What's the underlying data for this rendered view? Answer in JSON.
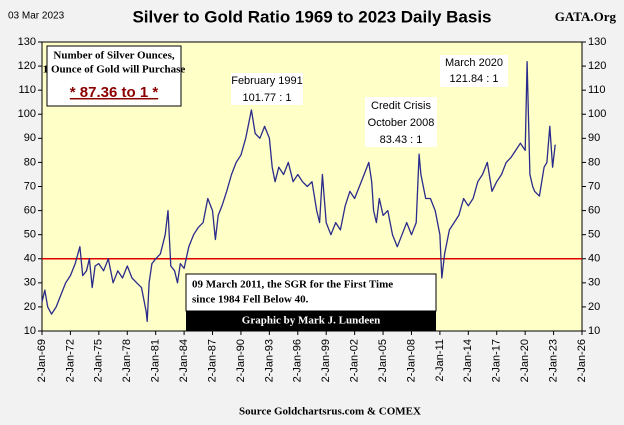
{
  "chart_data": {
    "type": "line",
    "date": "03 Mar 2023",
    "title": "Silver to Gold Ratio 1969 to 2023 Daily Basis",
    "site": "GATA.Org",
    "source": "Source Goldchartsrus.com & COMEX",
    "credit": "Graphic by Mark J. Lundeen",
    "box": {
      "lines": [
        "Number of Silver Ounces,",
        "1 Ounce of Gold will Purchase"
      ],
      "highlight": "* 87.36 to 1 *"
    },
    "annotations": [
      {
        "lines": [
          "February 1991",
          "101.77  : 1"
        ]
      },
      {
        "lines": [
          "Credit Crisis",
          "October 2008",
          "83.43  : 1"
        ]
      },
      {
        "lines": [
          "March  2020",
          "121.84  : 1"
        ]
      },
      {
        "lines": [
          "09 March 2011, the SGR for the First Time",
          "since 1984 Fell Below 40."
        ]
      }
    ],
    "color": "#2b2b8c",
    "hline": {
      "value": 40,
      "color": "#e00000"
    },
    "x": [
      1969.0,
      1969.3,
      1969.6,
      1970.0,
      1970.5,
      1971.0,
      1971.5,
      1972.0,
      1972.5,
      1973.0,
      1973.3,
      1973.7,
      1974.0,
      1974.3,
      1974.6,
      1975.0,
      1975.5,
      1976.0,
      1976.5,
      1977.0,
      1977.5,
      1978.0,
      1978.5,
      1979.0,
      1979.5,
      1980.0,
      1980.1,
      1980.3,
      1980.6,
      1981.0,
      1981.5,
      1982.0,
      1982.3,
      1982.6,
      1983.0,
      1983.3,
      1983.6,
      1984.0,
      1984.5,
      1985.0,
      1985.5,
      1986.0,
      1986.5,
      1987.0,
      1987.3,
      1987.6,
      1988.0,
      1988.5,
      1989.0,
      1989.5,
      1990.0,
      1990.5,
      1991.1,
      1991.5,
      1992.0,
      1992.5,
      1993.0,
      1993.3,
      1993.6,
      1994.0,
      1994.5,
      1995.0,
      1995.5,
      1996.0,
      1996.5,
      1997.0,
      1997.5,
      1998.0,
      1998.3,
      1998.6,
      1999.0,
      1999.5,
      2000.0,
      2000.5,
      2001.0,
      2001.5,
      2002.0,
      2002.5,
      2003.0,
      2003.5,
      2003.8,
      2004.0,
      2004.3,
      2004.6,
      2005.0,
      2005.5,
      2006.0,
      2006.5,
      2007.0,
      2007.5,
      2008.0,
      2008.5,
      2008.8,
      2009.0,
      2009.5,
      2010.0,
      2010.5,
      2011.0,
      2011.2,
      2011.5,
      2012.0,
      2012.5,
      2013.0,
      2013.5,
      2014.0,
      2014.5,
      2015.0,
      2015.5,
      2016.0,
      2016.5,
      2017.0,
      2017.5,
      2018.0,
      2018.5,
      2019.0,
      2019.5,
      2020.0,
      2020.2,
      2020.5,
      2020.8,
      2021.0,
      2021.5,
      2022.0,
      2022.3,
      2022.6,
      2022.9,
      2023.17
    ],
    "values": [
      22,
      27,
      20,
      17,
      20,
      25,
      30,
      33,
      38,
      45,
      33,
      35,
      40,
      28,
      37,
      38,
      35,
      40,
      30,
      35,
      32,
      37,
      32,
      30,
      28,
      18,
      14,
      30,
      38,
      40,
      42,
      50,
      60,
      37,
      35,
      30,
      38,
      36,
      45,
      50,
      53,
      55,
      65,
      60,
      48,
      58,
      62,
      68,
      75,
      80,
      83,
      90,
      101.77,
      92,
      90,
      95,
      90,
      78,
      72,
      78,
      75,
      80,
      72,
      75,
      72,
      70,
      72,
      60,
      55,
      75,
      55,
      50,
      55,
      52,
      62,
      68,
      65,
      70,
      75,
      80,
      72,
      60,
      55,
      65,
      58,
      60,
      50,
      45,
      50,
      55,
      50,
      55,
      83.43,
      75,
      65,
      65,
      60,
      50,
      32,
      42,
      52,
      55,
      58,
      65,
      62,
      65,
      72,
      75,
      80,
      68,
      72,
      75,
      80,
      82,
      85,
      88,
      85,
      121.84,
      75,
      70,
      68,
      66,
      78,
      80,
      95,
      78,
      87.36
    ],
    "xlim": [
      1969,
      2026
    ],
    "xticks": [
      {
        "value": 1969,
        "label": "2-Jan-69"
      },
      {
        "value": 1972,
        "label": "2-Jan-72"
      },
      {
        "value": 1975,
        "label": "2-Jan-75"
      },
      {
        "value": 1978,
        "label": "2-Jan-78"
      },
      {
        "value": 1981,
        "label": "2-Jan-81"
      },
      {
        "value": 1984,
        "label": "2-Jan-84"
      },
      {
        "value": 1987,
        "label": "2-Jan-87"
      },
      {
        "value": 1990,
        "label": "2-Jan-90"
      },
      {
        "value": 1993,
        "label": "2-Jan-93"
      },
      {
        "value": 1996,
        "label": "2-Jan-96"
      },
      {
        "value": 1999,
        "label": "2-Jan-99"
      },
      {
        "value": 2002,
        "label": "2-Jan-02"
      },
      {
        "value": 2005,
        "label": "2-Jan-05"
      },
      {
        "value": 2008,
        "label": "2-Jan-08"
      },
      {
        "value": 2011,
        "label": "2-Jan-11"
      },
      {
        "value": 2014,
        "label": "2-Jan-14"
      },
      {
        "value": 2017,
        "label": "2-Jan-17"
      },
      {
        "value": 2020,
        "label": "2-Jan-20"
      },
      {
        "value": 2023,
        "label": "2-Jan-23"
      },
      {
        "value": 2026,
        "label": "2-Jan-26"
      }
    ],
    "ylim": [
      10,
      130
    ],
    "yticks": [
      10,
      20,
      30,
      40,
      50,
      60,
      70,
      80,
      90,
      100,
      110,
      120,
      130
    ]
  }
}
